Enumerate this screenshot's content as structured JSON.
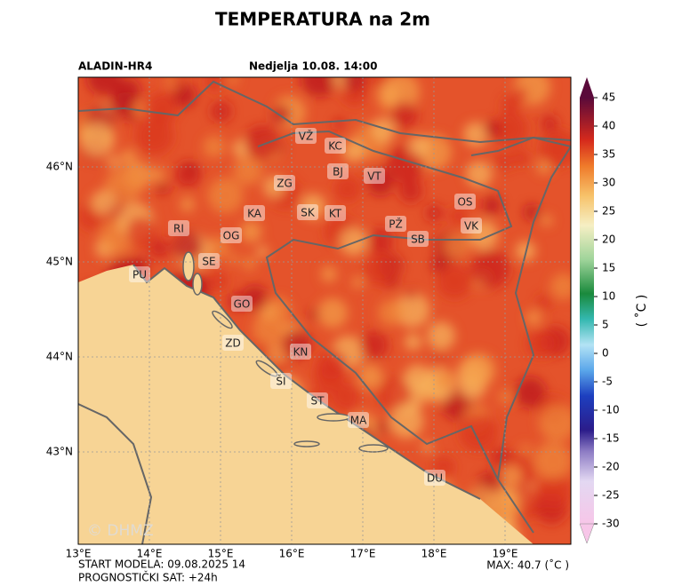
{
  "title": "TEMPERATURA na 2m",
  "model": "ALADIN-HR4",
  "valid_time": "Nedjelja 10.08. 14:00",
  "watermark": "© DHMZ",
  "map": {
    "lon_ticks": [
      "13°E",
      "14°E",
      "15°E",
      "16°E",
      "17°E",
      "18°E",
      "19°E"
    ],
    "lat_ticks": [
      "46°N",
      "45°N",
      "44°N",
      "43°N"
    ],
    "cities": [
      "VŽ",
      "KC",
      "BJ",
      "VT",
      "ZG",
      "SK",
      "KT",
      "KA",
      "OS",
      "PŽ",
      "VK",
      "SB",
      "RI",
      "OG",
      "SE",
      "PU",
      "GO",
      "ZD",
      "KN",
      "ŠI",
      "ST",
      "MA",
      "DU"
    ]
  },
  "colorbar": {
    "label": "( ˚C )",
    "lim": [
      -30,
      45
    ],
    "ticks": [
      45,
      40,
      35,
      30,
      25,
      20,
      15,
      10,
      5,
      0,
      -5,
      -10,
      -15,
      -20,
      -25,
      -30
    ]
  },
  "footer": {
    "start": "START MODELA: 09.08.2025 14",
    "hour": "PROGNOSTIČKI SAT: +24h",
    "max": "MAX: 40.7 (˚C )"
  }
}
